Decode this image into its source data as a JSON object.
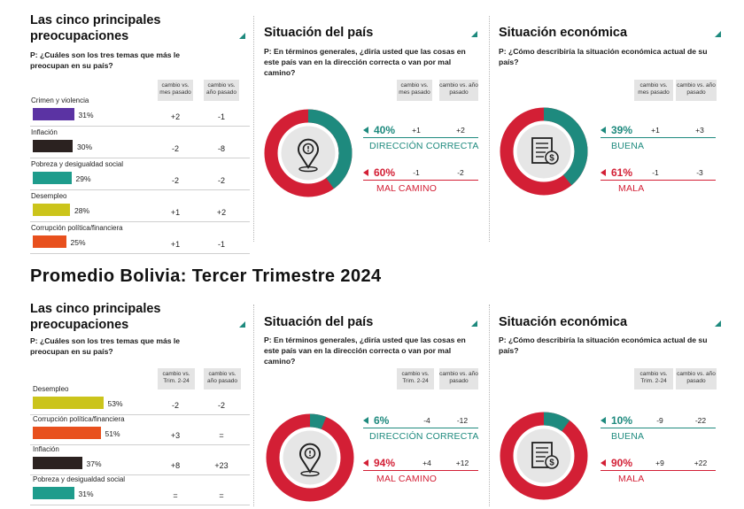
{
  "colors": {
    "teal": "#1e8a7e",
    "red": "#d31f35",
    "purple": "#5b33a3",
    "black": "#2b2220",
    "teal_bar": "#1e9c8c",
    "yellow": "#cbc41b",
    "orange": "#e8501d",
    "grey_ring": "#e6e6e6"
  },
  "top": {
    "concerns": {
      "title": "Las cinco principales preocupaciones",
      "question": "P: ¿Cuáles son los tres temas que más le preocupan en su país?",
      "col1": "cambio vs. mes pasado",
      "col2": "cambio vs. año pasado",
      "items": [
        {
          "label": "Crimen y violencia",
          "pct": "31%",
          "value": 31,
          "c1": "+2",
          "c2": "-1",
          "color": "purple"
        },
        {
          "label": "Inflación",
          "pct": "30%",
          "value": 30,
          "c1": "-2",
          "c2": "-8",
          "color": "black"
        },
        {
          "label": "Pobreza y desigualdad social",
          "pct": "29%",
          "value": 29,
          "c1": "-2",
          "c2": "-2",
          "color": "teal_bar"
        },
        {
          "label": "Desempleo",
          "pct": "28%",
          "value": 28,
          "c1": "+1",
          "c2": "+2",
          "color": "yellow"
        },
        {
          "label": "Corrupción política/financiera",
          "pct": "25%",
          "value": 25,
          "c1": "+1",
          "c2": "-1",
          "color": "orange"
        }
      ]
    },
    "country": {
      "title": "Situación del país",
      "question": "P: En términos generales, ¿diría usted que las cosas en este país van en la dirección correcta o van por mal camino?",
      "col1": "cambio vs. mes pasado",
      "col2": "cambio vs. año pasado",
      "pos": {
        "pct": "40%",
        "value": 40,
        "c1": "+1",
        "c2": "+2",
        "label": "DIRECCIÓN CORRECTA"
      },
      "neg": {
        "pct": "60%",
        "value": 60,
        "c1": "-1",
        "c2": "-2",
        "label": "MAL CAMINO"
      }
    },
    "economy": {
      "title": "Situación económica",
      "question": "P: ¿Cómo describiría la situación económica actual de su país?",
      "col1": "cambio vs. mes pasado",
      "col2": "cambio vs. año pasado",
      "pos": {
        "pct": "39%",
        "value": 39,
        "c1": "+1",
        "c2": "+3",
        "label": "BUENA"
      },
      "neg": {
        "pct": "61%",
        "value": 61,
        "c1": "-1",
        "c2": "-3",
        "label": "MALA"
      }
    }
  },
  "main_title": "Promedio Bolivia: Tercer Trimestre 2024",
  "bottom": {
    "concerns": {
      "title": "Las cinco principales preocupaciones",
      "question": "P: ¿Cuáles son los tres temas que más le preocupan en su país?",
      "col1": "cambio vs. Trim. 2-24",
      "col2": "cambio vs. año pasado",
      "items": [
        {
          "label": "Desempleo",
          "pct": "53%",
          "value": 53,
          "c1": "-2",
          "c2": "-2",
          "color": "yellow"
        },
        {
          "label": "Corrupción política/financiera",
          "pct": "51%",
          "value": 51,
          "c1": "+3",
          "c2": "=",
          "color": "orange"
        },
        {
          "label": "Inflación",
          "pct": "37%",
          "value": 37,
          "c1": "+8",
          "c2": "+23",
          "color": "black"
        },
        {
          "label": "Pobreza y desigualdad social",
          "pct": "31%",
          "value": 31,
          "c1": "=",
          "c2": "=",
          "color": "teal_bar"
        }
      ]
    },
    "country": {
      "title": "Situación del país",
      "question": "P: En términos generales, ¿diría usted que las cosas en este país van en la dirección correcta o van por mal camino?",
      "col1": "cambio vs. Trim. 2-24",
      "col2": "cambio vs. año pasado",
      "pos": {
        "pct": "6%",
        "value": 6,
        "c1": "-4",
        "c2": "-12",
        "label": "DIRECCIÓN CORRECTA"
      },
      "neg": {
        "pct": "94%",
        "value": 94,
        "c1": "+4",
        "c2": "+12",
        "label": "MAL CAMINO"
      }
    },
    "economy": {
      "title": "Situación económica",
      "question": "P: ¿Cómo describiría la situación económica actual de su país?",
      "col1": "cambio vs. Trim. 2-24",
      "col2": "cambio vs. año pasado",
      "pos": {
        "pct": "10%",
        "value": 10,
        "c1": "-9",
        "c2": "-22",
        "label": "BUENA"
      },
      "neg": {
        "pct": "90%",
        "value": 90,
        "c1": "+9",
        "c2": "+22",
        "label": "MALA"
      }
    }
  },
  "chart_data": [
    {
      "type": "bar",
      "title": "Las cinco principales preocupaciones",
      "categories": [
        "Crimen y violencia",
        "Inflación",
        "Pobreza y desigualdad social",
        "Desempleo",
        "Corrupción política/financiera"
      ],
      "values": [
        31,
        30,
        29,
        28,
        25
      ]
    },
    {
      "type": "pie",
      "title": "Situación del país",
      "categories": [
        "DIRECCIÓN CORRECTA",
        "MAL CAMINO"
      ],
      "values": [
        40,
        60
      ]
    },
    {
      "type": "pie",
      "title": "Situación económica",
      "categories": [
        "BUENA",
        "MALA"
      ],
      "values": [
        39,
        61
      ]
    },
    {
      "type": "bar",
      "title": "Las cinco principales preocupaciones",
      "categories": [
        "Desempleo",
        "Corrupción política/financiera",
        "Inflación",
        "Pobreza y desigualdad social"
      ],
      "values": [
        53,
        51,
        37,
        31
      ]
    },
    {
      "type": "pie",
      "title": "Situación del país",
      "categories": [
        "DIRECCIÓN CORRECTA",
        "MAL CAMINO"
      ],
      "values": [
        6,
        94
      ]
    },
    {
      "type": "pie",
      "title": "Situación económica",
      "categories": [
        "BUENA",
        "MALA"
      ],
      "values": [
        10,
        90
      ]
    }
  ]
}
